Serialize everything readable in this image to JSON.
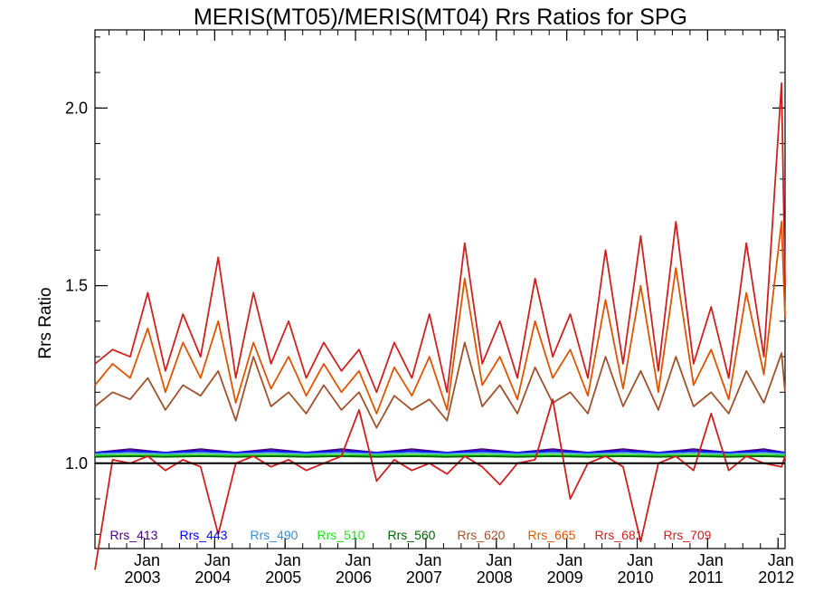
{
  "chart_data": {
    "type": "line",
    "title": "MERIS(MT05)/MERIS(MT04)  Rrs Ratios for SPG",
    "ylabel": "Rrs Ratio",
    "xlabel": "",
    "xlim": [
      2002.3,
      2012.1
    ],
    "ylim": [
      0.76,
      2.22
    ],
    "y_ticks": [
      "1.0",
      "1.5",
      "2.0"
    ],
    "y_tick_values": [
      1.0,
      1.5,
      2.0
    ],
    "x_ticks": [
      {
        "month": "Jan",
        "year": "2003",
        "x": 2003.0
      },
      {
        "month": "Jan",
        "year": "2004",
        "x": 2004.0
      },
      {
        "month": "Jan",
        "year": "2005",
        "x": 2005.0
      },
      {
        "month": "Jan",
        "year": "2006",
        "x": 2006.0
      },
      {
        "month": "Jan",
        "year": "2007",
        "x": 2007.0
      },
      {
        "month": "Jan",
        "year": "2008",
        "x": 2008.0
      },
      {
        "month": "Jan",
        "year": "2009",
        "x": 2009.0
      },
      {
        "month": "Jan",
        "year": "2010",
        "x": 2010.0
      },
      {
        "month": "Jan",
        "year": "2011",
        "x": 2011.0
      },
      {
        "month": "Jan",
        "year": "2012",
        "x": 2012.0
      }
    ],
    "reference_line": 1.0,
    "legend_position": "bottom",
    "series": [
      {
        "name": "Rrs_413",
        "color": "#4b0082",
        "x": [
          2002.3,
          2002.8,
          2003.3,
          2003.8,
          2004.3,
          2004.8,
          2005.3,
          2005.8,
          2006.3,
          2006.8,
          2007.3,
          2007.8,
          2008.3,
          2008.8,
          2009.3,
          2009.8,
          2010.3,
          2010.8,
          2011.3,
          2011.8,
          2012.1
        ],
        "values": [
          1.03,
          1.04,
          1.03,
          1.04,
          1.03,
          1.04,
          1.03,
          1.04,
          1.03,
          1.04,
          1.03,
          1.04,
          1.03,
          1.04,
          1.03,
          1.04,
          1.03,
          1.04,
          1.03,
          1.04,
          1.03
        ]
      },
      {
        "name": "Rrs_443",
        "color": "#0000ff",
        "x": [
          2002.3,
          2002.8,
          2003.3,
          2003.8,
          2004.3,
          2004.8,
          2005.3,
          2005.8,
          2006.3,
          2006.8,
          2007.3,
          2007.8,
          2008.3,
          2008.8,
          2009.3,
          2009.8,
          2010.3,
          2010.8,
          2011.3,
          2011.8,
          2012.1
        ],
        "values": [
          1.03,
          1.035,
          1.03,
          1.035,
          1.03,
          1.035,
          1.03,
          1.035,
          1.03,
          1.035,
          1.03,
          1.035,
          1.03,
          1.035,
          1.03,
          1.035,
          1.03,
          1.035,
          1.03,
          1.035,
          1.03
        ]
      },
      {
        "name": "Rrs_490",
        "color": "#3a8fd0",
        "x": [
          2002.3,
          2002.8,
          2003.3,
          2003.8,
          2004.3,
          2004.8,
          2005.3,
          2005.8,
          2006.3,
          2006.8,
          2007.3,
          2007.8,
          2008.3,
          2008.8,
          2009.3,
          2009.8,
          2010.3,
          2010.8,
          2011.3,
          2011.8,
          2012.1
        ],
        "values": [
          1.027,
          1.03,
          1.027,
          1.03,
          1.027,
          1.03,
          1.027,
          1.03,
          1.027,
          1.03,
          1.027,
          1.03,
          1.027,
          1.03,
          1.027,
          1.03,
          1.027,
          1.03,
          1.027,
          1.03,
          1.027
        ]
      },
      {
        "name": "Rrs_510",
        "color": "#22dd22",
        "x": [
          2002.3,
          2002.8,
          2003.3,
          2003.8,
          2004.3,
          2004.8,
          2005.3,
          2005.8,
          2006.3,
          2006.8,
          2007.3,
          2007.8,
          2008.3,
          2008.8,
          2009.3,
          2009.8,
          2010.3,
          2010.8,
          2011.3,
          2011.8,
          2012.1
        ],
        "values": [
          1.022,
          1.024,
          1.022,
          1.024,
          1.022,
          1.024,
          1.022,
          1.024,
          1.022,
          1.024,
          1.022,
          1.024,
          1.022,
          1.024,
          1.022,
          1.024,
          1.022,
          1.024,
          1.022,
          1.024,
          1.022
        ]
      },
      {
        "name": "Rrs_560",
        "color": "#006400",
        "x": [
          2002.3,
          2002.8,
          2003.3,
          2003.8,
          2004.3,
          2004.8,
          2005.3,
          2005.8,
          2006.3,
          2006.8,
          2007.3,
          2007.8,
          2008.3,
          2008.8,
          2009.3,
          2009.8,
          2010.3,
          2010.8,
          2011.3,
          2011.8,
          2012.1
        ],
        "values": [
          1.018,
          1.02,
          1.018,
          1.02,
          1.018,
          1.02,
          1.018,
          1.02,
          1.018,
          1.02,
          1.018,
          1.02,
          1.018,
          1.02,
          1.018,
          1.02,
          1.018,
          1.02,
          1.018,
          1.02,
          1.018
        ]
      },
      {
        "name": "Rrs_620",
        "color": "#a0522d",
        "x": [
          2002.3,
          2002.55,
          2002.8,
          2003.05,
          2003.3,
          2003.55,
          2003.8,
          2004.05,
          2004.3,
          2004.55,
          2004.8,
          2005.05,
          2005.3,
          2005.55,
          2005.8,
          2006.05,
          2006.3,
          2006.55,
          2006.8,
          2007.05,
          2007.3,
          2007.55,
          2007.8,
          2008.05,
          2008.3,
          2008.55,
          2008.8,
          2009.05,
          2009.3,
          2009.55,
          2009.8,
          2010.05,
          2010.3,
          2010.55,
          2010.8,
          2011.05,
          2011.3,
          2011.55,
          2011.8,
          2012.05,
          2012.1
        ],
        "values": [
          1.16,
          1.2,
          1.18,
          1.24,
          1.15,
          1.22,
          1.19,
          1.26,
          1.12,
          1.3,
          1.16,
          1.2,
          1.14,
          1.22,
          1.15,
          1.2,
          1.1,
          1.19,
          1.15,
          1.18,
          1.12,
          1.34,
          1.16,
          1.22,
          1.14,
          1.27,
          1.17,
          1.2,
          1.14,
          1.3,
          1.16,
          1.26,
          1.15,
          1.3,
          1.16,
          1.2,
          1.14,
          1.26,
          1.17,
          1.31,
          1.2
        ]
      },
      {
        "name": "Rrs_665",
        "color": "#dd5500",
        "x": [
          2002.3,
          2002.55,
          2002.8,
          2003.05,
          2003.3,
          2003.55,
          2003.8,
          2004.05,
          2004.3,
          2004.55,
          2004.8,
          2005.05,
          2005.3,
          2005.55,
          2005.8,
          2006.05,
          2006.3,
          2006.55,
          2006.8,
          2007.05,
          2007.3,
          2007.55,
          2007.8,
          2008.05,
          2008.3,
          2008.55,
          2008.8,
          2009.05,
          2009.3,
          2009.55,
          2009.8,
          2010.05,
          2010.3,
          2010.55,
          2010.8,
          2011.05,
          2011.3,
          2011.55,
          2011.8,
          2012.05,
          2012.1
        ],
        "values": [
          1.22,
          1.28,
          1.24,
          1.38,
          1.2,
          1.34,
          1.24,
          1.4,
          1.17,
          1.34,
          1.21,
          1.3,
          1.19,
          1.28,
          1.2,
          1.26,
          1.14,
          1.27,
          1.19,
          1.3,
          1.15,
          1.52,
          1.22,
          1.3,
          1.18,
          1.4,
          1.24,
          1.32,
          1.19,
          1.46,
          1.21,
          1.5,
          1.2,
          1.55,
          1.22,
          1.32,
          1.18,
          1.48,
          1.25,
          1.68,
          1.41
        ]
      },
      {
        "name": "Rrs_681",
        "color": "#cc2222",
        "x": [
          2002.3,
          2002.55,
          2002.8,
          2003.05,
          2003.3,
          2003.55,
          2003.8,
          2004.05,
          2004.3,
          2004.55,
          2004.8,
          2005.05,
          2005.3,
          2005.55,
          2005.8,
          2006.05,
          2006.3,
          2006.55,
          2006.8,
          2007.05,
          2007.3,
          2007.55,
          2007.8,
          2008.05,
          2008.3,
          2008.55,
          2008.8,
          2009.05,
          2009.3,
          2009.55,
          2009.8,
          2010.05,
          2010.3,
          2010.55,
          2010.8,
          2011.05,
          2011.3,
          2011.55,
          2011.8,
          2012.05,
          2012.1
        ],
        "values": [
          1.28,
          1.32,
          1.3,
          1.48,
          1.26,
          1.42,
          1.3,
          1.58,
          1.24,
          1.48,
          1.28,
          1.4,
          1.24,
          1.34,
          1.26,
          1.32,
          1.2,
          1.34,
          1.24,
          1.42,
          1.2,
          1.62,
          1.28,
          1.4,
          1.24,
          1.52,
          1.3,
          1.42,
          1.24,
          1.6,
          1.28,
          1.64,
          1.26,
          1.68,
          1.28,
          1.44,
          1.24,
          1.62,
          1.3,
          2.07,
          1.5
        ]
      },
      {
        "name": "Rrs_709",
        "color": "#cc1f1f",
        "x": [
          2002.3,
          2002.55,
          2002.8,
          2003.05,
          2003.3,
          2003.55,
          2003.8,
          2004.05,
          2004.3,
          2004.55,
          2004.8,
          2005.05,
          2005.3,
          2005.55,
          2005.8,
          2006.05,
          2006.3,
          2006.55,
          2006.8,
          2007.05,
          2007.3,
          2007.55,
          2007.8,
          2008.05,
          2008.3,
          2008.55,
          2008.8,
          2009.05,
          2009.3,
          2009.55,
          2009.8,
          2010.05,
          2010.3,
          2010.55,
          2010.8,
          2011.05,
          2011.3,
          2011.55,
          2011.8,
          2012.05,
          2012.1
        ],
        "values": [
          0.7,
          1.01,
          1.0,
          1.02,
          0.98,
          1.01,
          0.99,
          0.8,
          1.0,
          1.02,
          0.99,
          1.01,
          0.98,
          1.0,
          1.02,
          1.15,
          0.95,
          1.01,
          0.98,
          1.0,
          0.97,
          1.02,
          0.99,
          0.94,
          1.0,
          1.01,
          1.18,
          0.9,
          1.0,
          1.02,
          0.99,
          0.78,
          1.0,
          1.02,
          0.98,
          1.14,
          0.98,
          1.02,
          1.0,
          0.99,
          1.02
        ]
      }
    ]
  }
}
